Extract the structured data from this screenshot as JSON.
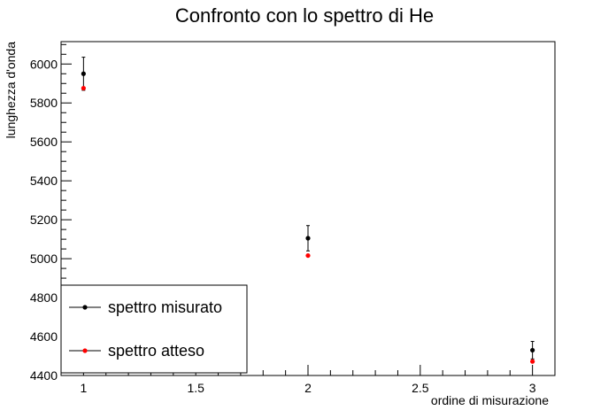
{
  "chart_data": {
    "type": "scatter",
    "title": "Confronto con lo spettro di He",
    "xlabel": "ordine di misurazione",
    "ylabel": "lunghezza d'onda",
    "xlim": [
      0.9,
      3.1
    ],
    "ylim": [
      4400,
      6115
    ],
    "x_ticks": [
      1,
      1.5,
      2,
      2.5,
      3
    ],
    "x_tick_labels": [
      "1",
      "1.5",
      "2",
      "2.5",
      "3"
    ],
    "y_ticks": [
      4400,
      4600,
      4800,
      5000,
      5200,
      5400,
      5600,
      5800,
      6000
    ],
    "y_tick_labels": [
      "4400",
      "4600",
      "4800",
      "5000",
      "5200",
      "5400",
      "5600",
      "5800",
      "6000"
    ],
    "grid": false,
    "legend_position": "bottom-left",
    "series": [
      {
        "name": "spettro misurato",
        "color": "#000000",
        "points": [
          {
            "x": 1,
            "y": 5950,
            "err": 85
          },
          {
            "x": 2,
            "y": 5105,
            "err": 65
          },
          {
            "x": 3,
            "y": 4530,
            "err": 45
          }
        ]
      },
      {
        "name": "spettro atteso",
        "color": "#ff0000",
        "points": [
          {
            "x": 1,
            "y": 5876
          },
          {
            "x": 2,
            "y": 5016
          },
          {
            "x": 3,
            "y": 4472
          }
        ]
      }
    ]
  }
}
